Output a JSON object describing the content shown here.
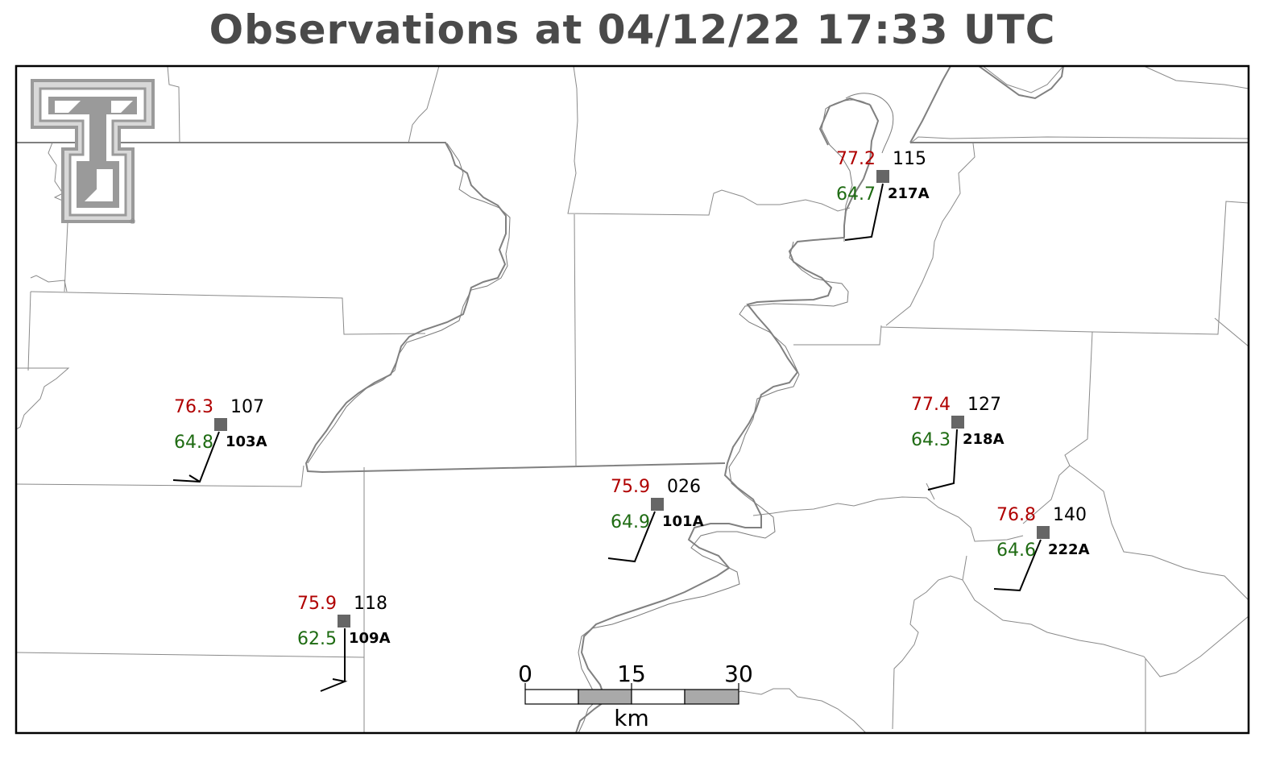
{
  "title": "Observations at 04/12/22 17:33 UTC",
  "colors": {
    "temperature": "#b00000",
    "dewpoint": "#1e6b12",
    "station_marker": "#666666"
  },
  "logo": {
    "name": "double-t-logo",
    "registered_mark": "®"
  },
  "stations": [
    {
      "id": "217A",
      "temp": "77.2",
      "dewpoint": "64.7",
      "pressure": "115"
    },
    {
      "id": "103A",
      "temp": "76.3",
      "dewpoint": "64.8",
      "pressure": "107"
    },
    {
      "id": "218A",
      "temp": "77.4",
      "dewpoint": "64.3",
      "pressure": "127"
    },
    {
      "id": "101A",
      "temp": "75.9",
      "dewpoint": "64.9",
      "pressure": "026"
    },
    {
      "id": "222A",
      "temp": "76.8",
      "dewpoint": "64.6",
      "pressure": "140"
    },
    {
      "id": "109A",
      "temp": "75.9",
      "dewpoint": "62.5",
      "pressure": "118"
    }
  ],
  "scale_bar": {
    "ticks": [
      "0",
      "15",
      "30"
    ],
    "unit": "km"
  }
}
